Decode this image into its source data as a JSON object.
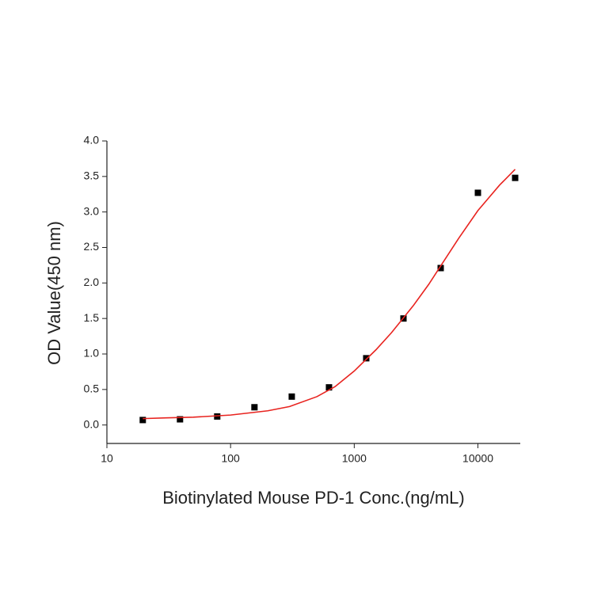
{
  "chart_data": {
    "type": "scatter",
    "x_label": "Biotinylated Mouse PD-1 Conc.(ng/mL)",
    "y_label": "OD Value(450 nm)",
    "xscale": "log",
    "xlim": [
      10,
      22000
    ],
    "xticks": [
      10,
      100,
      1000,
      10000
    ],
    "ylim": [
      -0.26,
      4.0
    ],
    "yticks": [
      {
        "value": 0,
        "label": "0.0"
      },
      {
        "value": 0.5,
        "label": "0.5"
      },
      {
        "value": 1,
        "label": "1.0"
      },
      {
        "value": 1.5,
        "label": "1.5"
      },
      {
        "value": 2,
        "label": "2.0"
      },
      {
        "value": 2.5,
        "label": "2.5"
      },
      {
        "value": 3,
        "label": "3.0"
      },
      {
        "value": 3.5,
        "label": "3.5"
      },
      {
        "value": 4,
        "label": "4.0"
      }
    ],
    "series": [
      {
        "type": "scatter",
        "color": "#000000",
        "x": [
          19.5,
          39,
          78,
          156,
          312.5,
          625,
          1250,
          2500,
          5000,
          10000,
          20000
        ],
        "values": [
          0.07,
          0.08,
          0.12,
          0.25,
          0.4,
          0.53,
          0.94,
          1.5,
          2.21,
          3.27,
          3.48
        ]
      },
      {
        "type": "line",
        "color": "#e8231f",
        "x": [
          19.5,
          30,
          50,
          100,
          200,
          300,
          500,
          700,
          1000,
          1500,
          2000,
          3000,
          4000,
          5000,
          7000,
          10000,
          15000,
          20000
        ],
        "values": [
          0.09,
          0.1,
          0.11,
          0.14,
          0.2,
          0.26,
          0.4,
          0.54,
          0.76,
          1.06,
          1.3,
          1.68,
          1.98,
          2.24,
          2.63,
          3.02,
          3.38,
          3.6
        ]
      }
    ]
  }
}
